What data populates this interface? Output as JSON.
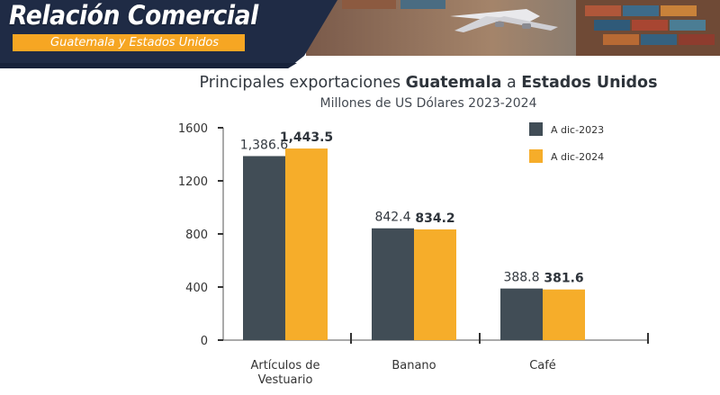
{
  "header": {
    "title": "Relación Comercial",
    "subtitle": "Guatemala y Estados Unidos"
  },
  "colors": {
    "navy": "#1f2b45",
    "orange": "#f6a623",
    "series_2023": "#414d56",
    "series_2024": "#f6ad2a"
  },
  "chart_data": {
    "type": "bar",
    "title_parts": [
      {
        "text": "Principales exportaciones ",
        "bold": false
      },
      {
        "text": "Guatemala",
        "bold": true
      },
      {
        "text": " a ",
        "bold": false
      },
      {
        "text": "Estados Unidos",
        "bold": true
      }
    ],
    "subtitle": "Millones de US Dólares 2023-2024",
    "categories": [
      [
        "Artículos de",
        "Vestuario"
      ],
      [
        "Banano"
      ],
      [
        "Café"
      ]
    ],
    "series": [
      {
        "name": "A dic-2023",
        "values": [
          1386.6,
          842.4,
          388.8
        ],
        "labels": [
          "1,386.6",
          "842.4",
          "388.8"
        ],
        "bold_labels": false
      },
      {
        "name": "A dic-2024",
        "values": [
          1443.5,
          834.2,
          381.6
        ],
        "labels": [
          "1,443.5",
          "834.2",
          "381.6"
        ],
        "bold_labels": true
      }
    ],
    "yticks": [
      0,
      400,
      800,
      1200,
      1600
    ],
    "ylim": [
      0,
      1600
    ],
    "grid": false,
    "legend_position": "top-right"
  }
}
